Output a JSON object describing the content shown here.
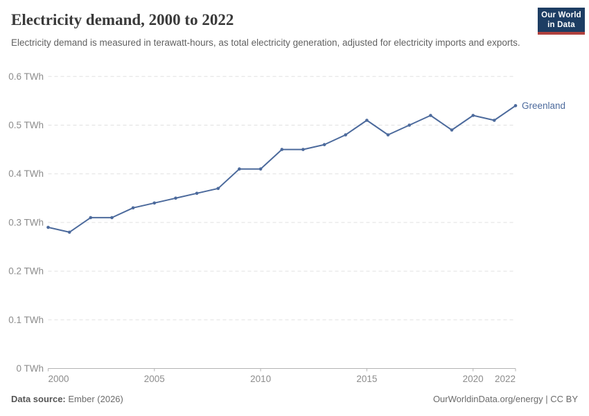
{
  "header": {
    "title": "Electricity demand, 2000 to 2022",
    "subtitle": "Electricity demand is measured in terawatt-hours, as total electricity generation, adjusted for electricity imports and exports."
  },
  "logo": {
    "line1": "Our World",
    "line2": "in Data"
  },
  "chart_data": {
    "type": "line",
    "title": "Electricity demand, 2000 to 2022",
    "unit": "TWh",
    "x": [
      2000,
      2001,
      2002,
      2003,
      2004,
      2005,
      2006,
      2007,
      2008,
      2009,
      2010,
      2011,
      2012,
      2013,
      2014,
      2015,
      2016,
      2017,
      2018,
      2019,
      2020,
      2021,
      2022
    ],
    "series": [
      {
        "name": "Greenland",
        "color": "#4C6A9C",
        "values": [
          0.29,
          0.28,
          0.31,
          0.31,
          0.33,
          0.34,
          0.35,
          0.36,
          0.37,
          0.41,
          0.41,
          0.45,
          0.45,
          0.46,
          0.48,
          0.51,
          0.48,
          0.5,
          0.52,
          0.49,
          0.52,
          0.51,
          0.54
        ]
      }
    ],
    "xlim": [
      2000,
      2022
    ],
    "ylim": [
      0,
      0.6
    ],
    "y_ticks": [
      0,
      0.1,
      0.2,
      0.3,
      0.4,
      0.5,
      0.6
    ],
    "y_tick_labels": [
      "0 TWh",
      "0.1 TWh",
      "0.2 TWh",
      "0.3 TWh",
      "0.4 TWh",
      "0.5 TWh",
      "0.6 TWh"
    ],
    "x_ticks": [
      2000,
      2005,
      2010,
      2015,
      2020,
      2022
    ],
    "grid": true,
    "legend_position": "end-of-line"
  },
  "footer": {
    "datasource_label": "Data source:",
    "datasource_value": "Ember (2026)",
    "attribution": "OurWorldinData.org/energy | CC BY"
  },
  "colors": {
    "line": "#4C6A9C",
    "grid": "#e0e0e0",
    "axis": "#b3b3b3",
    "axis_text": "#8c8c8c",
    "logo_bg": "#1d3d63",
    "logo_red": "#b0413e"
  }
}
